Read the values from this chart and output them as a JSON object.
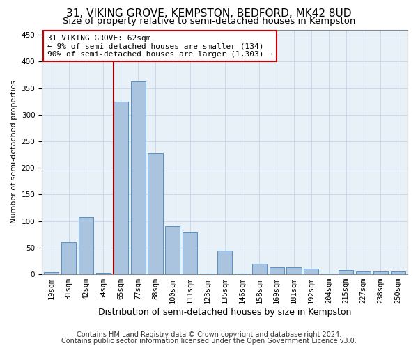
{
  "title1": "31, VIKING GROVE, KEMPSTON, BEDFORD, MK42 8UD",
  "title2": "Size of property relative to semi-detached houses in Kempston",
  "xlabel": "Distribution of semi-detached houses by size in Kempston",
  "ylabel": "Number of semi-detached properties",
  "categories": [
    "19sqm",
    "31sqm",
    "42sqm",
    "54sqm",
    "65sqm",
    "77sqm",
    "88sqm",
    "100sqm",
    "111sqm",
    "123sqm",
    "135sqm",
    "146sqm",
    "158sqm",
    "169sqm",
    "181sqm",
    "192sqm",
    "204sqm",
    "215sqm",
    "227sqm",
    "238sqm",
    "250sqm"
  ],
  "values": [
    4,
    60,
    108,
    3,
    325,
    362,
    228,
    90,
    78,
    2,
    45,
    2,
    20,
    13,
    13,
    10,
    2,
    8,
    5,
    5,
    5
  ],
  "bar_color": "#aac4df",
  "bar_edge_color": "#5590c8",
  "vline_x_index": 4,
  "vline_color": "#990000",
  "annotation_text": "31 VIKING GROVE: 62sqm\n← 9% of semi-detached houses are smaller (134)\n90% of semi-detached houses are larger (1,303) →",
  "annotation_box_color": "#ffffff",
  "annotation_box_edge": "#cc0000",
  "footer1": "Contains HM Land Registry data © Crown copyright and database right 2024.",
  "footer2": "Contains public sector information licensed under the Open Government Licence v3.0.",
  "ylim": [
    0,
    460
  ],
  "yticks": [
    0,
    50,
    100,
    150,
    200,
    250,
    300,
    350,
    400,
    450
  ],
  "title1_fontsize": 11,
  "title2_fontsize": 9.5,
  "xlabel_fontsize": 9,
  "ylabel_fontsize": 8,
  "tick_fontsize": 7.5,
  "annotation_fontsize": 8,
  "footer_fontsize": 7
}
